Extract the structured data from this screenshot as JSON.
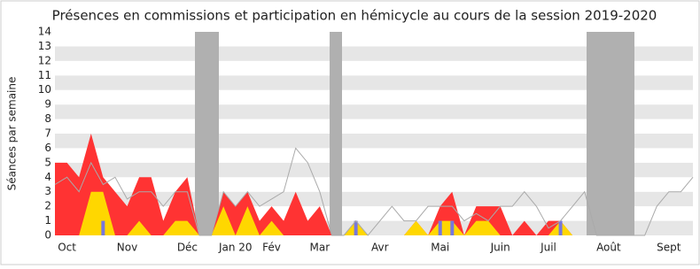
{
  "chart_data": {
    "type": "area",
    "title": "Présences en commissions et participation en hémicycle au cours de la session 2019-2020",
    "y_label": "Séances par semaine",
    "categories": [
      null,
      "Oct",
      null,
      null,
      null,
      null,
      "Nov",
      null,
      null,
      null,
      null,
      "Déc",
      null,
      null,
      null,
      "Jan 20",
      null,
      null,
      "Fév",
      null,
      null,
      null,
      "Mar",
      null,
      null,
      null,
      null,
      "Avr",
      null,
      null,
      null,
      null,
      "Mai",
      null,
      null,
      null,
      null,
      "Juin",
      null,
      null,
      null,
      "Juil",
      null,
      null,
      null,
      null,
      "Août",
      null,
      null,
      null,
      null,
      "Sept",
      null,
      null
    ],
    "series": [
      {
        "kind": "area",
        "color": "#ff3333",
        "values": [
          5,
          5,
          4,
          7,
          4,
          3,
          2,
          4,
          4,
          1,
          3,
          4,
          0,
          0,
          3,
          2,
          3,
          1,
          2,
          1,
          3,
          1,
          2,
          0,
          0,
          1,
          0,
          0,
          0,
          0,
          1,
          0,
          2,
          3,
          0,
          2,
          2,
          2,
          0,
          1,
          0,
          1,
          1,
          0,
          0,
          0,
          0,
          0,
          0,
          0,
          0,
          0,
          0,
          0
        ]
      },
      {
        "kind": "area",
        "color": "#ffd700",
        "values": [
          0,
          0,
          0,
          3,
          3,
          0,
          0,
          1,
          0,
          0,
          1,
          1,
          0,
          0,
          2,
          0,
          2,
          0,
          1,
          0,
          0,
          0,
          0,
          0,
          0,
          1,
          0,
          0,
          0,
          0,
          1,
          0,
          1,
          1,
          0,
          1,
          1,
          0,
          0,
          0,
          0,
          0,
          1,
          0,
          0,
          0,
          0,
          0,
          0,
          0,
          0,
          0,
          0,
          0
        ]
      },
      {
        "kind": "bar",
        "color": "#7777dd",
        "values": [
          0,
          0,
          0,
          0,
          1,
          0,
          0,
          0,
          0,
          0,
          0,
          0,
          0,
          0,
          0,
          0,
          0,
          0,
          0,
          0,
          0,
          0,
          0,
          0,
          0,
          1,
          0,
          0,
          0,
          0,
          0,
          0,
          1,
          1,
          0,
          0,
          0,
          0,
          0,
          0,
          0,
          0,
          1,
          0,
          0,
          0,
          0,
          0,
          0,
          0,
          0,
          0,
          0,
          0
        ]
      },
      {
        "kind": "line",
        "color": "#aaaaaa",
        "values": [
          3.5,
          4,
          3,
          5,
          3.5,
          4,
          2.5,
          3,
          3,
          2,
          3,
          3,
          0,
          0,
          3,
          2,
          3,
          2,
          2.5,
          3,
          6,
          5,
          3,
          0,
          0,
          1,
          0,
          1,
          2,
          1,
          1,
          2,
          2,
          2,
          1,
          1.5,
          1,
          2,
          2,
          3,
          2,
          0.5,
          1,
          2,
          3,
          0,
          0,
          0,
          0,
          0,
          2,
          3,
          3,
          4
        ]
      }
    ],
    "ylim": [
      0,
      14
    ],
    "yticks": [
      0,
      1,
      2,
      3,
      4,
      5,
      6,
      7,
      8,
      9,
      10,
      11,
      12,
      13,
      14
    ],
    "grid": true
  }
}
